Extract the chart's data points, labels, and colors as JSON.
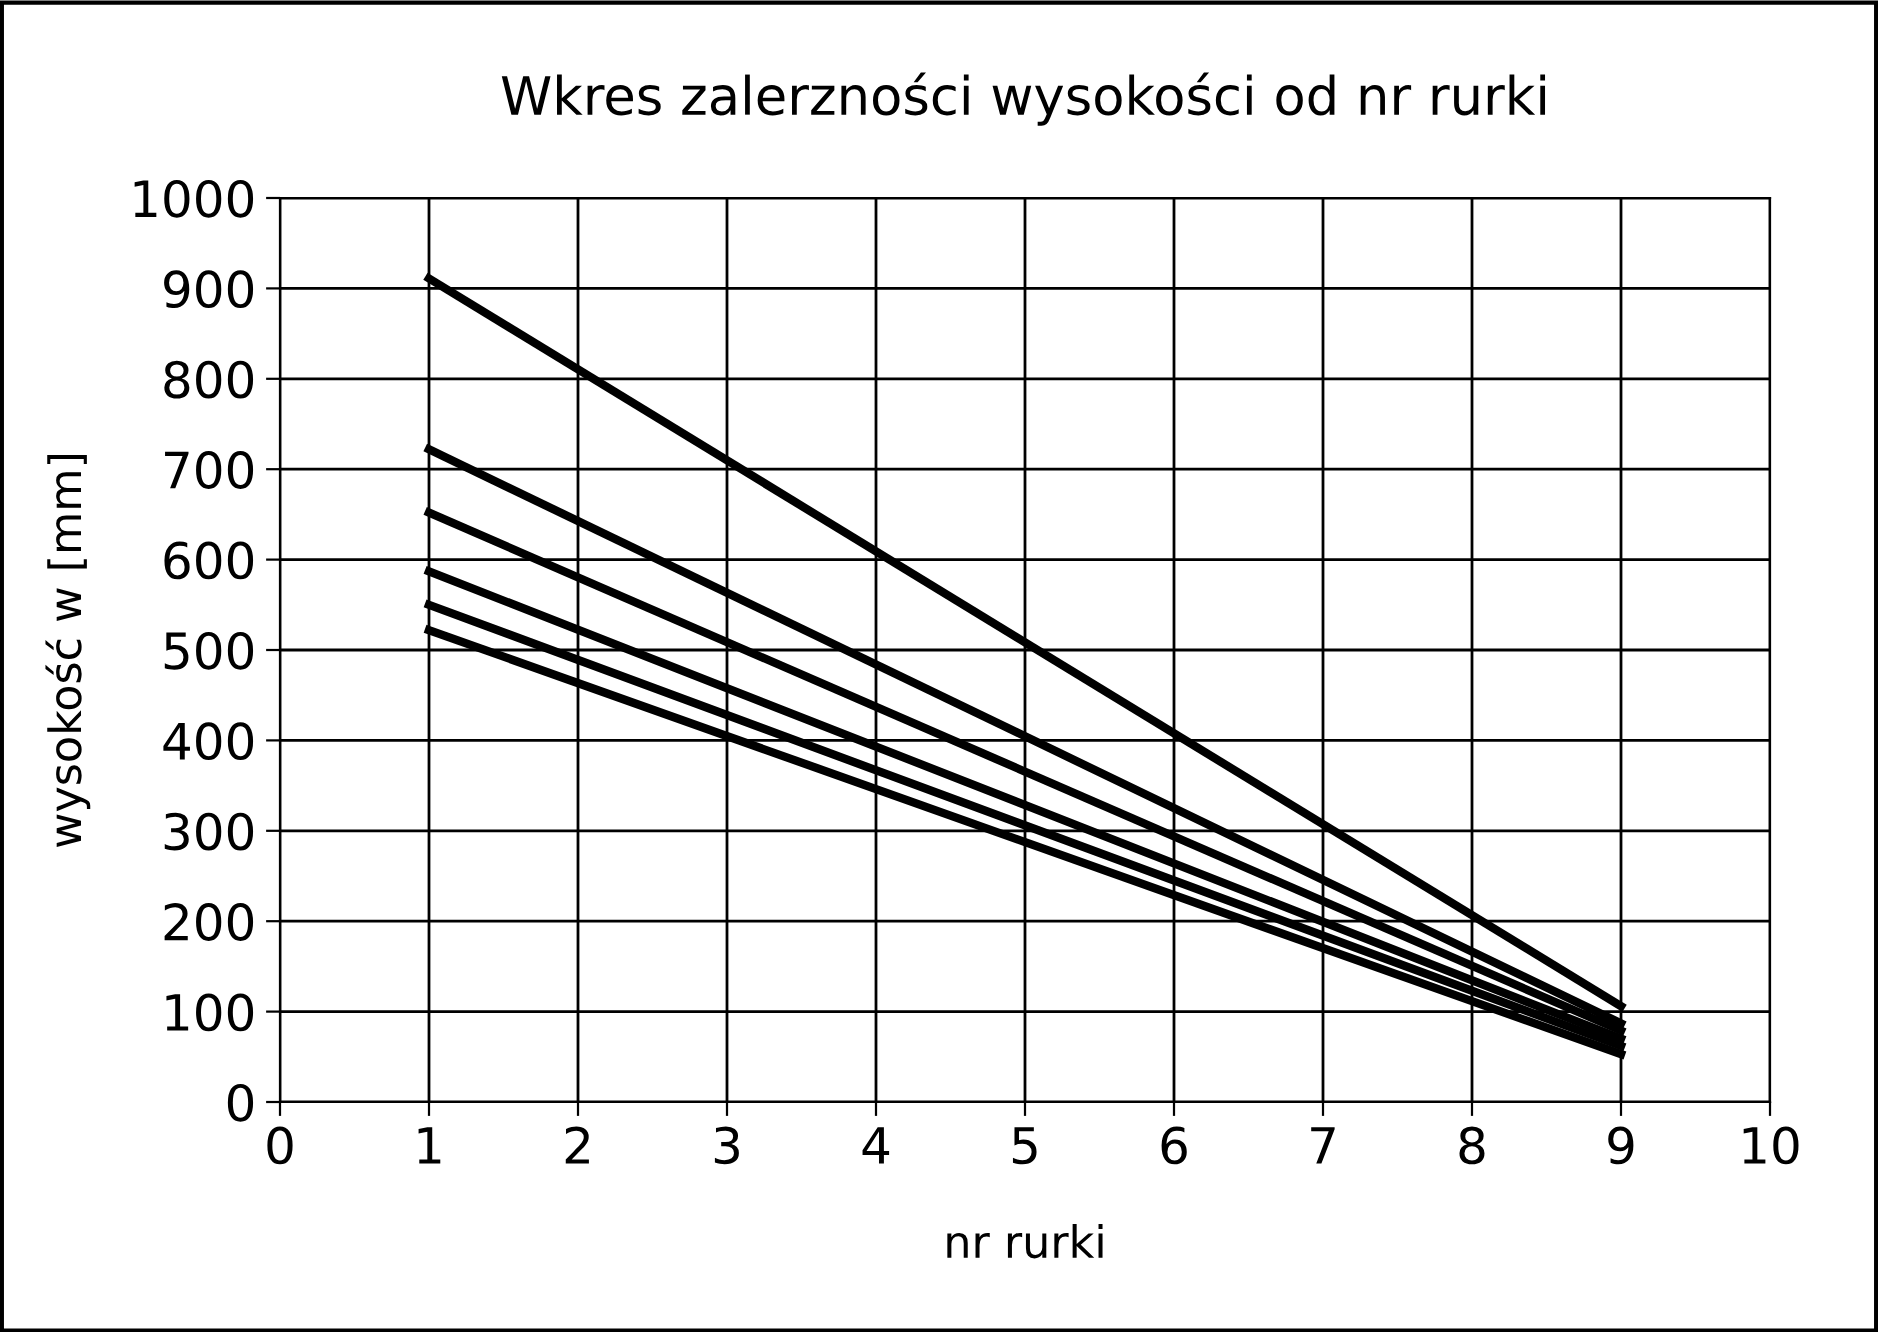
{
  "chart_data": {
    "type": "line",
    "title": "Wkres zalerzności wysokości od nr rurki",
    "xlabel": "nr rurki",
    "ylabel": "wysokość w [mm]",
    "x": [
      1,
      9
    ],
    "series": [
      {
        "color": "#000000",
        "values": [
          911,
          106
        ]
      },
      {
        "color": "#000000",
        "values": [
          722,
          87
        ]
      },
      {
        "color": "#000000",
        "values": [
          652,
          79
        ]
      },
      {
        "color": "#000000",
        "values": [
          587,
          70
        ]
      },
      {
        "color": "#000000",
        "values": [
          550,
          62
        ]
      },
      {
        "color": "#000000",
        "values": [
          522,
          53
        ]
      }
    ],
    "xlim": [
      0,
      10
    ],
    "xticks": [
      0,
      1,
      2,
      3,
      4,
      5,
      6,
      7,
      8,
      9,
      10
    ],
    "ylim": [
      0,
      1000
    ],
    "yticks": [
      0,
      100,
      200,
      300,
      400,
      500,
      600,
      700,
      800,
      900,
      1000
    ],
    "grid": true,
    "legend": false,
    "marker": "none",
    "line_style": "solid"
  }
}
